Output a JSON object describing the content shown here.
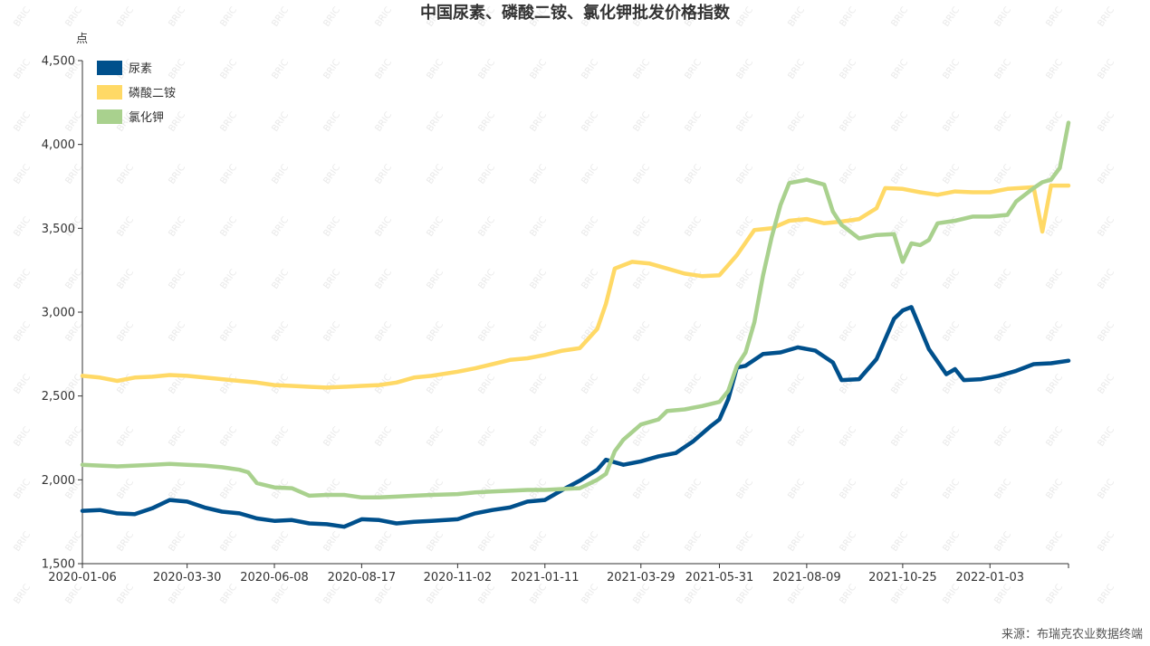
{
  "chart_data": {
    "type": "line",
    "title": "中国尿素、磷酸二铵、氯化钾批发价格指数",
    "ylabel": "点",
    "ylim": [
      1500,
      4500
    ],
    "yticks": [
      1500,
      2000,
      2500,
      3000,
      3500,
      4000,
      4500
    ],
    "ytick_labels": [
      "1,500",
      "2,000",
      "2,500",
      "3,000",
      "3,500",
      "4,000",
      "4,500"
    ],
    "xlim": [
      "2020-01-06",
      "2022-03-07"
    ],
    "xticks": [
      "2020-01-06",
      "2020-03-30",
      "2020-06-08",
      "2020-08-17",
      "2020-11-02",
      "2021-01-11",
      "2021-03-29",
      "2021-05-31",
      "2021-08-09",
      "2021-10-25",
      "2022-01-03"
    ],
    "legend_position": "top-left",
    "grid": false,
    "source": "来源：布瑞克农业数据终端",
    "watermark": "BRIC",
    "series": [
      {
        "name": "尿素",
        "color": "#00508c",
        "points": [
          [
            "2020-01-06",
            1815
          ],
          [
            "2020-01-20",
            1820
          ],
          [
            "2020-02-03",
            1800
          ],
          [
            "2020-02-17",
            1795
          ],
          [
            "2020-03-02",
            1830
          ],
          [
            "2020-03-16",
            1880
          ],
          [
            "2020-03-30",
            1870
          ],
          [
            "2020-04-13",
            1835
          ],
          [
            "2020-04-27",
            1810
          ],
          [
            "2020-05-11",
            1800
          ],
          [
            "2020-05-25",
            1770
          ],
          [
            "2020-06-08",
            1755
          ],
          [
            "2020-06-22",
            1760
          ],
          [
            "2020-07-06",
            1740
          ],
          [
            "2020-07-20",
            1735
          ],
          [
            "2020-08-03",
            1720
          ],
          [
            "2020-08-17",
            1765
          ],
          [
            "2020-08-31",
            1760
          ],
          [
            "2020-09-14",
            1740
          ],
          [
            "2020-09-28",
            1750
          ],
          [
            "2020-10-12",
            1755
          ],
          [
            "2020-11-02",
            1765
          ],
          [
            "2020-11-16",
            1800
          ],
          [
            "2020-11-30",
            1820
          ],
          [
            "2020-12-14",
            1835
          ],
          [
            "2020-12-28",
            1870
          ],
          [
            "2021-01-11",
            1880
          ],
          [
            "2021-01-25",
            1940
          ],
          [
            "2021-02-08",
            1995
          ],
          [
            "2021-02-22",
            2060
          ],
          [
            "2021-03-01",
            2120
          ],
          [
            "2021-03-15",
            2090
          ],
          [
            "2021-03-29",
            2110
          ],
          [
            "2021-04-12",
            2140
          ],
          [
            "2021-04-26",
            2160
          ],
          [
            "2021-05-10",
            2230
          ],
          [
            "2021-05-24",
            2320
          ],
          [
            "2021-05-31",
            2360
          ],
          [
            "2021-06-07",
            2480
          ],
          [
            "2021-06-14",
            2670
          ],
          [
            "2021-06-21",
            2680
          ],
          [
            "2021-07-05",
            2750
          ],
          [
            "2021-07-19",
            2760
          ],
          [
            "2021-08-02",
            2790
          ],
          [
            "2021-08-16",
            2770
          ],
          [
            "2021-08-30",
            2700
          ],
          [
            "2021-09-06",
            2595
          ],
          [
            "2021-09-20",
            2600
          ],
          [
            "2021-10-04",
            2720
          ],
          [
            "2021-10-18",
            2960
          ],
          [
            "2021-10-25",
            3010
          ],
          [
            "2021-11-01",
            3030
          ],
          [
            "2021-11-15",
            2780
          ],
          [
            "2021-11-29",
            2630
          ],
          [
            "2021-12-06",
            2660
          ],
          [
            "2021-12-13",
            2595
          ],
          [
            "2021-12-27",
            2600
          ],
          [
            "2022-01-10",
            2620
          ],
          [
            "2022-01-24",
            2650
          ],
          [
            "2022-02-07",
            2690
          ],
          [
            "2022-02-21",
            2695
          ],
          [
            "2022-03-07",
            2710
          ]
        ]
      },
      {
        "name": "磷酸二铵",
        "color": "#ffd966",
        "points": [
          [
            "2020-01-06",
            2620
          ],
          [
            "2020-01-20",
            2610
          ],
          [
            "2020-02-03",
            2590
          ],
          [
            "2020-02-17",
            2610
          ],
          [
            "2020-03-02",
            2615
          ],
          [
            "2020-03-16",
            2625
          ],
          [
            "2020-03-30",
            2620
          ],
          [
            "2020-04-13",
            2610
          ],
          [
            "2020-04-27",
            2600
          ],
          [
            "2020-05-11",
            2590
          ],
          [
            "2020-05-25",
            2580
          ],
          [
            "2020-06-08",
            2565
          ],
          [
            "2020-06-22",
            2560
          ],
          [
            "2020-07-06",
            2555
          ],
          [
            "2020-07-20",
            2550
          ],
          [
            "2020-08-03",
            2555
          ],
          [
            "2020-08-17",
            2560
          ],
          [
            "2020-08-31",
            2565
          ],
          [
            "2020-09-14",
            2580
          ],
          [
            "2020-09-28",
            2610
          ],
          [
            "2020-10-12",
            2620
          ],
          [
            "2020-11-02",
            2645
          ],
          [
            "2020-11-16",
            2665
          ],
          [
            "2020-11-30",
            2690
          ],
          [
            "2020-12-14",
            2715
          ],
          [
            "2020-12-28",
            2725
          ],
          [
            "2021-01-11",
            2745
          ],
          [
            "2021-01-25",
            2770
          ],
          [
            "2021-02-08",
            2785
          ],
          [
            "2021-02-22",
            2900
          ],
          [
            "2021-03-01",
            3050
          ],
          [
            "2021-03-08",
            3260
          ],
          [
            "2021-03-22",
            3300
          ],
          [
            "2021-04-05",
            3290
          ],
          [
            "2021-04-19",
            3260
          ],
          [
            "2021-05-03",
            3230
          ],
          [
            "2021-05-17",
            3215
          ],
          [
            "2021-05-31",
            3220
          ],
          [
            "2021-06-14",
            3340
          ],
          [
            "2021-06-28",
            3490
          ],
          [
            "2021-07-12",
            3500
          ],
          [
            "2021-07-26",
            3545
          ],
          [
            "2021-08-09",
            3555
          ],
          [
            "2021-08-23",
            3530
          ],
          [
            "2021-09-06",
            3540
          ],
          [
            "2021-09-20",
            3555
          ],
          [
            "2021-10-04",
            3620
          ],
          [
            "2021-10-11",
            3740
          ],
          [
            "2021-10-25",
            3735
          ],
          [
            "2021-11-08",
            3715
          ],
          [
            "2021-11-22",
            3700
          ],
          [
            "2021-12-06",
            3720
          ],
          [
            "2021-12-20",
            3715
          ],
          [
            "2022-01-03",
            3715
          ],
          [
            "2022-01-17",
            3735
          ],
          [
            "2022-02-07",
            3745
          ],
          [
            "2022-02-14",
            3480
          ],
          [
            "2022-02-21",
            3755
          ],
          [
            "2022-03-07",
            3755
          ]
        ]
      },
      {
        "name": "氯化钾",
        "color": "#a9d18e",
        "points": [
          [
            "2020-01-06",
            2090
          ],
          [
            "2020-01-20",
            2085
          ],
          [
            "2020-02-03",
            2080
          ],
          [
            "2020-02-17",
            2085
          ],
          [
            "2020-03-02",
            2090
          ],
          [
            "2020-03-16",
            2095
          ],
          [
            "2020-03-30",
            2090
          ],
          [
            "2020-04-13",
            2085
          ],
          [
            "2020-04-27",
            2075
          ],
          [
            "2020-05-11",
            2060
          ],
          [
            "2020-05-18",
            2045
          ],
          [
            "2020-05-25",
            1980
          ],
          [
            "2020-06-08",
            1955
          ],
          [
            "2020-06-22",
            1950
          ],
          [
            "2020-07-06",
            1905
          ],
          [
            "2020-07-20",
            1910
          ],
          [
            "2020-08-03",
            1910
          ],
          [
            "2020-08-17",
            1895
          ],
          [
            "2020-08-31",
            1895
          ],
          [
            "2020-09-14",
            1900
          ],
          [
            "2020-09-28",
            1905
          ],
          [
            "2020-10-12",
            1910
          ],
          [
            "2020-11-02",
            1915
          ],
          [
            "2020-11-16",
            1925
          ],
          [
            "2020-11-30",
            1930
          ],
          [
            "2020-12-14",
            1935
          ],
          [
            "2020-12-28",
            1940
          ],
          [
            "2021-01-11",
            1940
          ],
          [
            "2021-01-25",
            1945
          ],
          [
            "2021-02-08",
            1950
          ],
          [
            "2021-02-22",
            2000
          ],
          [
            "2021-03-01",
            2035
          ],
          [
            "2021-03-08",
            2170
          ],
          [
            "2021-03-15",
            2240
          ],
          [
            "2021-03-29",
            2330
          ],
          [
            "2021-04-12",
            2360
          ],
          [
            "2021-04-19",
            2410
          ],
          [
            "2021-05-03",
            2420
          ],
          [
            "2021-05-17",
            2440
          ],
          [
            "2021-05-31",
            2465
          ],
          [
            "2021-06-07",
            2530
          ],
          [
            "2021-06-14",
            2680
          ],
          [
            "2021-06-21",
            2760
          ],
          [
            "2021-06-28",
            2940
          ],
          [
            "2021-07-05",
            3220
          ],
          [
            "2021-07-12",
            3450
          ],
          [
            "2021-07-19",
            3640
          ],
          [
            "2021-07-26",
            3770
          ],
          [
            "2021-08-09",
            3790
          ],
          [
            "2021-08-23",
            3760
          ],
          [
            "2021-08-30",
            3600
          ],
          [
            "2021-09-06",
            3520
          ],
          [
            "2021-09-20",
            3440
          ],
          [
            "2021-10-04",
            3460
          ],
          [
            "2021-10-18",
            3465
          ],
          [
            "2021-10-25",
            3300
          ],
          [
            "2021-11-01",
            3410
          ],
          [
            "2021-11-08",
            3400
          ],
          [
            "2021-11-15",
            3430
          ],
          [
            "2021-11-22",
            3530
          ],
          [
            "2021-12-06",
            3545
          ],
          [
            "2021-12-20",
            3570
          ],
          [
            "2022-01-03",
            3570
          ],
          [
            "2022-01-17",
            3580
          ],
          [
            "2022-01-24",
            3660
          ],
          [
            "2022-02-07",
            3740
          ],
          [
            "2022-02-14",
            3775
          ],
          [
            "2022-02-21",
            3790
          ],
          [
            "2022-02-28",
            3860
          ],
          [
            "2022-03-07",
            4130
          ]
        ]
      }
    ]
  }
}
